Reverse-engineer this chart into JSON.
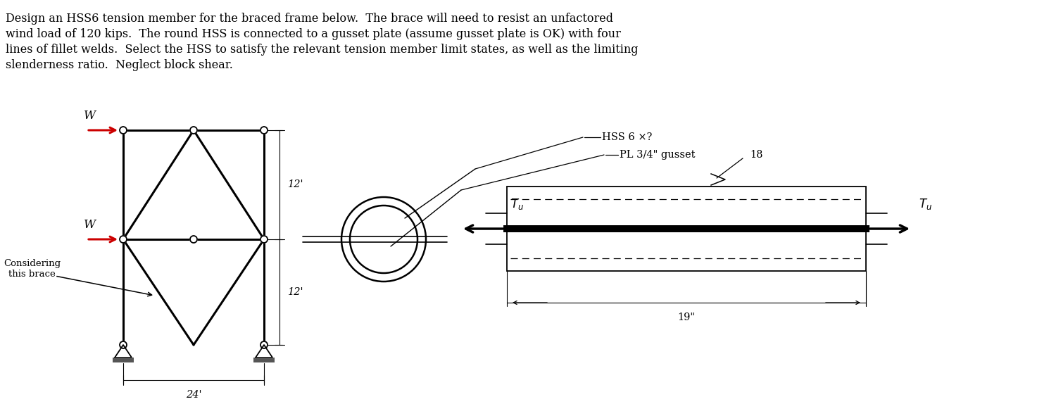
{
  "title_lines": [
    "Design an HSS6 tension member for the braced frame below.  The brace will need to resist an unfactored",
    "wind load of 120 kips.  The round HSS is connected to a gusset plate (assume gusset plate is OK) with four",
    "lines of fillet welds.  Select the HSS to satisfy the relevant tension member limit states, as well as the limiting",
    "slenderness ratio.  Neglect block shear."
  ],
  "bg_color": "#ffffff",
  "text_color": "#000000",
  "red_color": "#cc0000",
  "frame_label_12_top": "12'",
  "frame_label_12_bot": "12'",
  "frame_label_24": "24'",
  "label_W": "W",
  "label_considering": "Considering\nthis brace",
  "label_hss": "HSS 6 ×?",
  "label_pl": "PL 3/4\" gusset",
  "label_18": "18",
  "label_19": "19\"",
  "font_size_body": 11.5,
  "font_size_labels": 10.5,
  "font_size_dim": 10.5,
  "font_size_W": 12,
  "font_size_Tu": 12
}
